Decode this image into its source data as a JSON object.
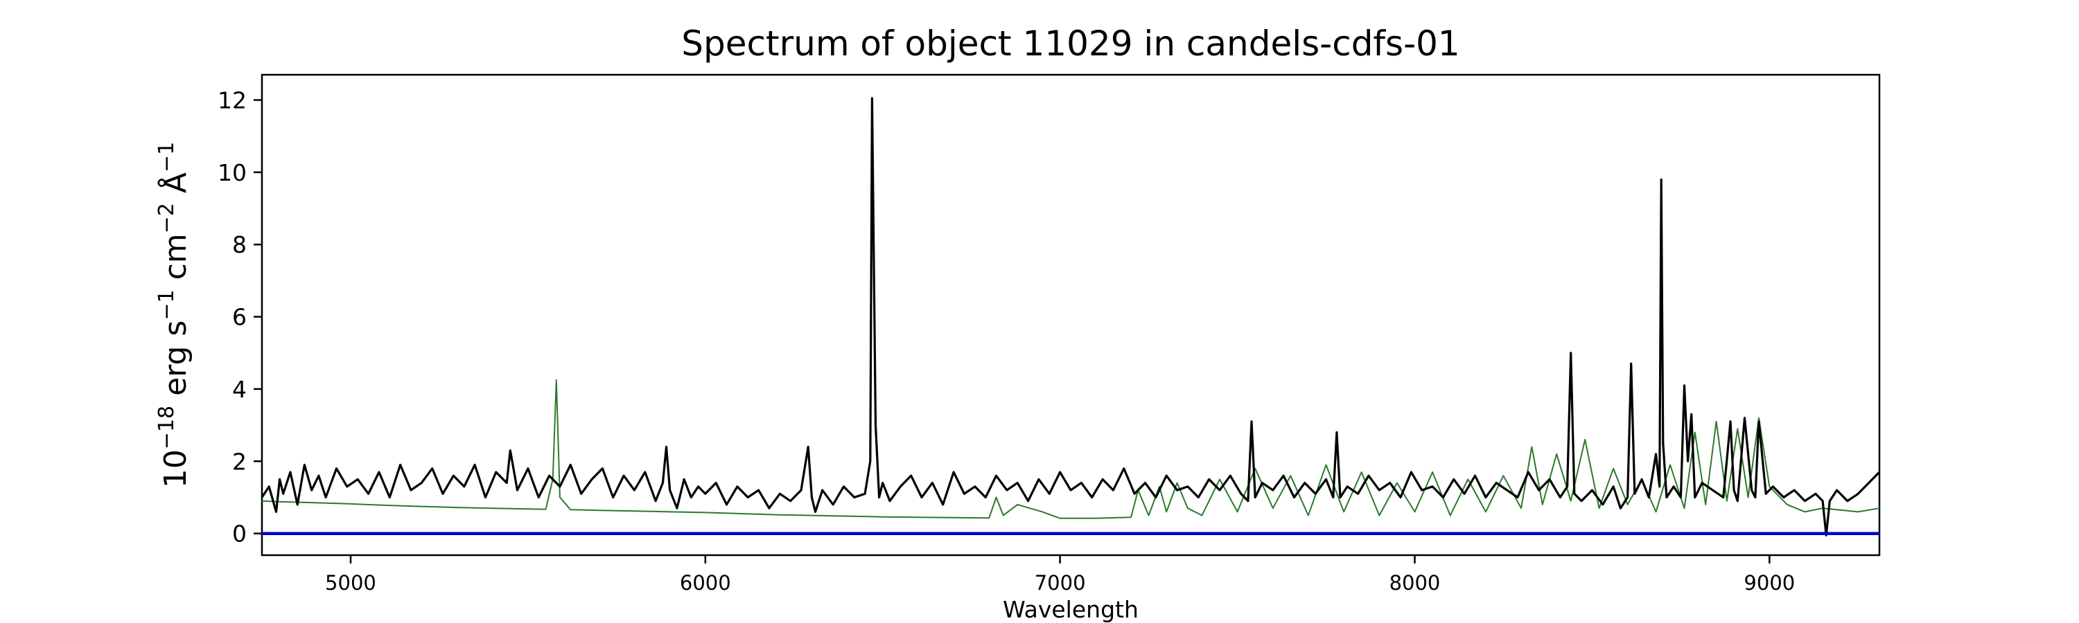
{
  "chart_data": {
    "type": "line",
    "title": "Spectrum of object 11029 in candels-cdfs-01",
    "xlabel": "Wavelength",
    "ylabel": {
      "base": "10",
      "exp_base": "−18",
      "text1": " erg s",
      "exp1": "−1",
      "text2": " cm",
      "exp2": "−2",
      "text3": " Å",
      "exp3": "−1"
    },
    "xlim": [
      4750,
      9310
    ],
    "ylim": [
      -0.6,
      12.7
    ],
    "xticks": [
      5000,
      6000,
      7000,
      8000,
      9000
    ],
    "yticks": [
      0,
      2,
      4,
      6,
      8,
      10,
      12
    ],
    "grid": false,
    "legend": "none",
    "series": [
      {
        "role": "model",
        "color": "#2a7a2a",
        "x": [
          4750,
          4800,
          4900,
          5000,
          5100,
          5200,
          5300,
          5400,
          5500,
          5550,
          5570,
          5580,
          5590,
          5620,
          5700,
          5800,
          5900,
          6000,
          6100,
          6200,
          6300,
          6400,
          6500,
          6600,
          6700,
          6800,
          6820,
          6840,
          6880,
          6950,
          7000,
          7100,
          7200,
          7220,
          7250,
          7280,
          7300,
          7330,
          7360,
          7400,
          7450,
          7500,
          7550,
          7600,
          7650,
          7700,
          7750,
          7800,
          7850,
          7900,
          7950,
          8000,
          8050,
          8100,
          8150,
          8200,
          8250,
          8300,
          8330,
          8360,
          8400,
          8440,
          8480,
          8520,
          8560,
          8600,
          8640,
          8680,
          8720,
          8760,
          8790,
          8820,
          8850,
          8880,
          8910,
          8940,
          8970,
          9000,
          9050,
          9100,
          9150,
          9200,
          9250,
          9310
        ],
        "y": [
          0.9,
          0.88,
          0.85,
          0.82,
          0.78,
          0.75,
          0.72,
          0.7,
          0.68,
          0.67,
          1.5,
          4.25,
          1.0,
          0.66,
          0.64,
          0.62,
          0.6,
          0.58,
          0.55,
          0.52,
          0.5,
          0.48,
          0.46,
          0.45,
          0.44,
          0.43,
          1.0,
          0.5,
          0.8,
          0.6,
          0.42,
          0.42,
          0.45,
          1.2,
          0.5,
          1.3,
          0.6,
          1.4,
          0.7,
          0.5,
          1.5,
          0.6,
          1.8,
          0.7,
          1.6,
          0.5,
          1.9,
          0.6,
          1.7,
          0.5,
          1.4,
          0.6,
          1.7,
          0.5,
          1.5,
          0.6,
          1.6,
          0.7,
          2.4,
          0.8,
          2.2,
          0.9,
          2.6,
          0.7,
          1.8,
          0.8,
          1.5,
          0.6,
          1.9,
          0.7,
          2.8,
          0.8,
          3.1,
          0.9,
          2.9,
          1.0,
          3.2,
          1.3,
          0.8,
          0.6,
          0.7,
          0.65,
          0.6,
          0.7
        ]
      },
      {
        "role": "data",
        "color": "#000000",
        "x": [
          4750,
          4770,
          4790,
          4800,
          4810,
          4830,
          4850,
          4870,
          4890,
          4910,
          4930,
          4960,
          4990,
          5020,
          5050,
          5080,
          5110,
          5140,
          5170,
          5200,
          5230,
          5260,
          5290,
          5320,
          5350,
          5380,
          5410,
          5440,
          5450,
          5470,
          5500,
          5530,
          5560,
          5590,
          5620,
          5650,
          5680,
          5710,
          5740,
          5770,
          5800,
          5830,
          5860,
          5880,
          5890,
          5900,
          5920,
          5940,
          5960,
          5980,
          6000,
          6030,
          6060,
          6090,
          6120,
          6150,
          6180,
          6210,
          6240,
          6270,
          6290,
          6300,
          6310,
          6330,
          6360,
          6390,
          6420,
          6450,
          6465,
          6470,
          6480,
          6490,
          6500,
          6520,
          6550,
          6580,
          6610,
          6640,
          6670,
          6700,
          6730,
          6760,
          6790,
          6820,
          6850,
          6880,
          6910,
          6940,
          6970,
          7000,
          7030,
          7060,
          7090,
          7120,
          7150,
          7180,
          7210,
          7240,
          7270,
          7300,
          7330,
          7360,
          7390,
          7420,
          7450,
          7480,
          7510,
          7530,
          7540,
          7550,
          7570,
          7600,
          7630,
          7660,
          7690,
          7720,
          7750,
          7770,
          7780,
          7790,
          7810,
          7840,
          7870,
          7900,
          7930,
          7960,
          7990,
          8020,
          8050,
          8080,
          8110,
          8140,
          8170,
          8200,
          8230,
          8260,
          8290,
          8320,
          8350,
          8380,
          8410,
          8430,
          8440,
          8450,
          8470,
          8500,
          8530,
          8560,
          8580,
          8600,
          8610,
          8620,
          8640,
          8660,
          8680,
          8690,
          8695,
          8700,
          8710,
          8730,
          8750,
          8760,
          8770,
          8780,
          8790,
          8810,
          8840,
          8870,
          8890,
          8900,
          8910,
          8930,
          8950,
          8960,
          8970,
          8990,
          9010,
          9040,
          9070,
          9100,
          9130,
          9150,
          9160,
          9170,
          9190,
          9220,
          9250,
          9280,
          9310
        ],
        "y": [
          1.0,
          1.3,
          0.6,
          1.5,
          1.1,
          1.7,
          0.8,
          1.9,
          1.2,
          1.6,
          1.0,
          1.8,
          1.3,
          1.5,
          1.1,
          1.7,
          1.0,
          1.9,
          1.2,
          1.4,
          1.8,
          1.1,
          1.6,
          1.3,
          1.9,
          1.0,
          1.7,
          1.4,
          2.3,
          1.2,
          1.8,
          1.0,
          1.6,
          1.3,
          1.9,
          1.1,
          1.5,
          1.8,
          1.0,
          1.6,
          1.2,
          1.7,
          0.9,
          1.4,
          2.4,
          1.2,
          0.7,
          1.5,
          1.0,
          1.3,
          1.1,
          1.4,
          0.8,
          1.3,
          1.0,
          1.2,
          0.7,
          1.1,
          0.9,
          1.2,
          2.4,
          1.0,
          0.6,
          1.2,
          0.8,
          1.3,
          1.0,
          1.1,
          2.0,
          12.05,
          3.0,
          1.0,
          1.4,
          0.9,
          1.3,
          1.6,
          1.0,
          1.4,
          0.8,
          1.7,
          1.1,
          1.3,
          1.0,
          1.6,
          1.2,
          1.4,
          0.9,
          1.5,
          1.1,
          1.7,
          1.2,
          1.4,
          1.0,
          1.5,
          1.2,
          1.8,
          1.1,
          1.4,
          1.0,
          1.6,
          1.2,
          1.3,
          1.0,
          1.5,
          1.2,
          1.6,
          1.1,
          0.9,
          3.1,
          1.0,
          1.4,
          1.2,
          1.6,
          1.0,
          1.4,
          1.1,
          1.5,
          1.0,
          2.8,
          1.0,
          1.3,
          1.1,
          1.6,
          1.2,
          1.4,
          1.0,
          1.7,
          1.2,
          1.3,
          1.0,
          1.5,
          1.1,
          1.6,
          1.0,
          1.4,
          1.2,
          1.0,
          1.7,
          1.2,
          1.5,
          1.0,
          1.3,
          5.0,
          1.1,
          0.9,
          1.2,
          0.8,
          1.3,
          0.7,
          1.0,
          4.7,
          1.1,
          1.5,
          1.0,
          2.2,
          1.3,
          9.8,
          2.5,
          1.0,
          1.3,
          1.0,
          4.1,
          2.0,
          3.3,
          1.0,
          1.4,
          1.2,
          1.0,
          3.1,
          1.2,
          0.9,
          3.2,
          1.2,
          1.0,
          3.1,
          1.1,
          1.3,
          1.0,
          1.2,
          0.9,
          1.1,
          0.9,
          -0.05,
          0.9,
          1.2,
          0.9,
          1.1,
          1.4,
          1.7
        ]
      },
      {
        "role": "zero-line",
        "color": "#0000cc",
        "x": [
          4750,
          9310
        ],
        "y": [
          0,
          0
        ]
      }
    ]
  }
}
